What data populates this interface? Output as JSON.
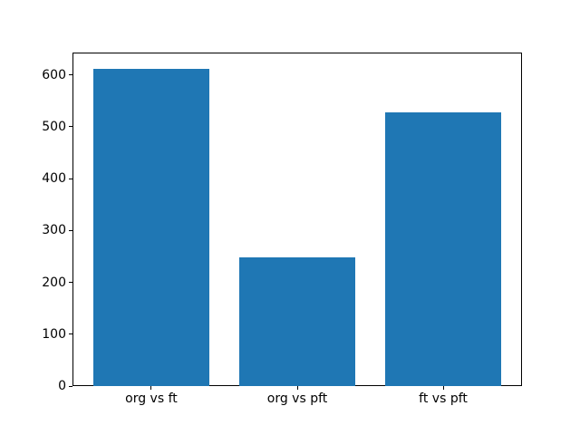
{
  "chart_data": {
    "type": "bar",
    "categories": [
      "org vs ft",
      "org vs pft",
      "ft vs pft"
    ],
    "values": [
      612,
      248,
      528
    ],
    "title": "",
    "xlabel": "",
    "ylabel": "",
    "ylim": [
      0,
      643
    ],
    "yticks": [
      0,
      100,
      200,
      300,
      400,
      500,
      600
    ],
    "xlim": [
      -0.54,
      2.54
    ],
    "bar_width": 0.8,
    "bar_color": "#1f77b4",
    "spine_color": "#000000",
    "background_color": "#ffffff",
    "grid": false,
    "legend": null
  }
}
